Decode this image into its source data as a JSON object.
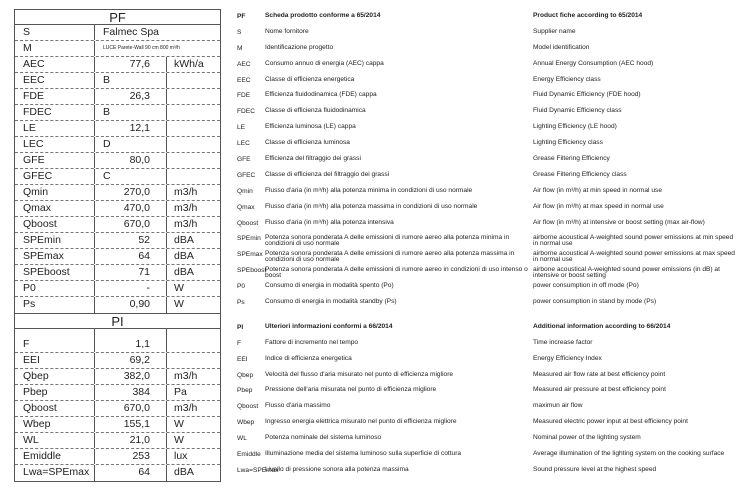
{
  "pf": {
    "title": "PF",
    "rows": [
      {
        "k": "S",
        "v": "Falmec Spa",
        "u": "",
        "wide": true
      },
      {
        "k": "M",
        "v": "LUCE Parete-Wall 90 cm 800 m³/h",
        "u": "",
        "wide": true,
        "small": true
      },
      {
        "k": "AEC",
        "v": "77,6",
        "u": "kWh/a"
      },
      {
        "k": "EEC",
        "v": "B",
        "u": "",
        "cls": true
      },
      {
        "k": "FDE",
        "v": "26,3",
        "u": ""
      },
      {
        "k": "FDEC",
        "v": "B",
        "u": "",
        "cls": true
      },
      {
        "k": "LE",
        "v": "12,1",
        "u": ""
      },
      {
        "k": "LEC",
        "v": "D",
        "u": "",
        "cls": true
      },
      {
        "k": "GFE",
        "v": "80,0",
        "u": ""
      },
      {
        "k": "GFEC",
        "v": "C",
        "u": "",
        "cls": true
      },
      {
        "k": "Qmin",
        "v": "270,0",
        "u": "m3/h"
      },
      {
        "k": "Qmax",
        "v": "470,0",
        "u": "m3/h"
      },
      {
        "k": "Qboost",
        "v": "670,0",
        "u": "m3/h"
      },
      {
        "k": "SPEmin",
        "v": "52",
        "u": "dBA"
      },
      {
        "k": "SPEmax",
        "v": "64",
        "u": "dBA"
      },
      {
        "k": "SPEboost",
        "v": "71",
        "u": "dBA"
      },
      {
        "k": "P0",
        "v": "-",
        "u": "W"
      },
      {
        "k": "Ps",
        "v": "0,90",
        "u": "W"
      }
    ]
  },
  "pi": {
    "title": "PI",
    "rows": [
      {
        "k": "F",
        "v": "1,1",
        "u": ""
      },
      {
        "k": "EEI",
        "v": "69,2",
        "u": ""
      },
      {
        "k": "Qbep",
        "v": "382,0",
        "u": "m3/h"
      },
      {
        "k": "Pbep",
        "v": "384",
        "u": "Pa"
      },
      {
        "k": "Qboost",
        "v": "670,0",
        "u": "m3/h"
      },
      {
        "k": "Wbep",
        "v": "155,1",
        "u": "W"
      },
      {
        "k": "WL",
        "v": "21,0",
        "u": "W"
      },
      {
        "k": "Emiddle",
        "v": "253",
        "u": "lux"
      },
      {
        "k": "Lwa=SPEmax",
        "v": "64",
        "u": "dBA"
      }
    ]
  },
  "legend": [
    {
      "k": "PF",
      "it": "Scheda prodotto conforme a 65/2014",
      "en": "Product fiche according to 65/2014",
      "bold": true
    },
    {
      "k": "S",
      "it": "Nome fornitore",
      "en": "Supplier name"
    },
    {
      "k": "M",
      "it": "Identificazione progetto",
      "en": "Model identification"
    },
    {
      "k": "AEC",
      "it": "Consumo annuo di energia (AEC) cappa",
      "en": "Annual Energy Consumption (AEC hood)"
    },
    {
      "k": "EEC",
      "it": "Classe di efficienza energetica",
      "en": "Energy Efficiency class"
    },
    {
      "k": "FDE",
      "it": "Efficienza fluidodinamica (FDE) cappa",
      "en": "Fluid Dynamic Efficiency (FDE hood)"
    },
    {
      "k": "FDEC",
      "it": "Classe di efficienza fluidodinamica",
      "en": "Fluid Dynamic Efficiency class"
    },
    {
      "k": "LE",
      "it": "Efficienza luminosa (LE) cappa",
      "en": "Lighting Efficiency (LE hood)"
    },
    {
      "k": "LEC",
      "it": "Classe di efficienza luminosa",
      "en": "Lighting Efficiency class"
    },
    {
      "k": "GFE",
      "it": "Efficienza del filtraggio dei grassi",
      "en": "Grease Filtering Efficiency"
    },
    {
      "k": "GFEC",
      "it": "Classe di efficienza del filtraggio dei grassi",
      "en": "Grease Filtering Efficiency class"
    },
    {
      "k": "Qmin",
      "it": "Flusso d'aria (in m³/h) alla potenza minima in condizioni di uso normale",
      "en": "Air flow (in m³/h) at min speed in normal use"
    },
    {
      "k": "Qmax",
      "it": "Flusso d'aria (in m³/h) alla potenza massima in condizioni di uso normale",
      "en": "Air flow (in m³/h) at max speed in normal use"
    },
    {
      "k": "Qboost",
      "it": "Flusso d'aria (in m³/h) alla potenza intensiva",
      "en": "Air flow (in m³/h) at intensive or boost setting (max air-flow)"
    },
    {
      "k": "SPEmin",
      "it": "Potenza sonora ponderata A delle emissioni di rumore aereo alla potenza minima in condizioni di uso normale",
      "en": "airborne acoustical A-weighted sound power emissions at min speed in normal use"
    },
    {
      "k": "SPEmax",
      "it": "Potenza sonora ponderata A delle emissioni di rumore aereo alla potenza massima in condizioni di uso normale",
      "en": "airborne acoustical A-weighted sound power emissions at max speed in normal use"
    },
    {
      "k": "SPEboost",
      "it": "Potenza sonora ponderata A delle emissioni di rumore aereo in condizioni di uso intenso o boost",
      "en": "airbone acoustical A-weighted sound power emissions (in dB) at intensive or boost setting"
    },
    {
      "k": "P0",
      "it": "Consumo di energia in modalità spento (Po)",
      "en": "power consumption in off mode (Po)"
    },
    {
      "k": "Ps",
      "it": "Consumo di energia in modalità standby (Ps)",
      "en": "power consumption in stand by mode (Ps)"
    },
    {
      "k": "PI",
      "it": "Ulteriori informazioni conformi a 66/2014",
      "en": "Additional information according to 66/2014",
      "bold": true,
      "gap": true
    },
    {
      "k": "F",
      "it": "Fattore di incremento nel tempo",
      "en": "Time increase factor"
    },
    {
      "k": "EEI",
      "it": "Indice di efficienza energetica",
      "en": "Energy Efficiency Index"
    },
    {
      "k": "Qbep",
      "it": "Velocità del flusso d'aria misurato nel punto di efficienza migliore",
      "en": "Measured air flow rate at best efficiency point"
    },
    {
      "k": "Pbep",
      "it": "Pressione dell'aria misurata nel punto di efficienza migliore",
      "en": "Measured air pressure at best efficiency point"
    },
    {
      "k": "Qboost",
      "it": "Flusso d'aria massimo",
      "en": "maximun air flow"
    },
    {
      "k": "Wbep",
      "it": "Ingresso energia elettrica misurato nel punto di efficienza migliore",
      "en": "Measured electric power input at best efficiency point"
    },
    {
      "k": "WL",
      "it": "Potenza nominale del sistema luminoso",
      "en": "Nominal power of the lighting system"
    },
    {
      "k": "Emiddle",
      "it": "Illuminazione media del sistema luminoso sulla superficie di cottura",
      "en": "Average illumination of the lighting system on the cooking surface"
    },
    {
      "k": "Lwa=SPEmax",
      "it": "Livello di pressione sonora alla potenza massima",
      "en": "Sound pressure level at the highest speed"
    }
  ]
}
